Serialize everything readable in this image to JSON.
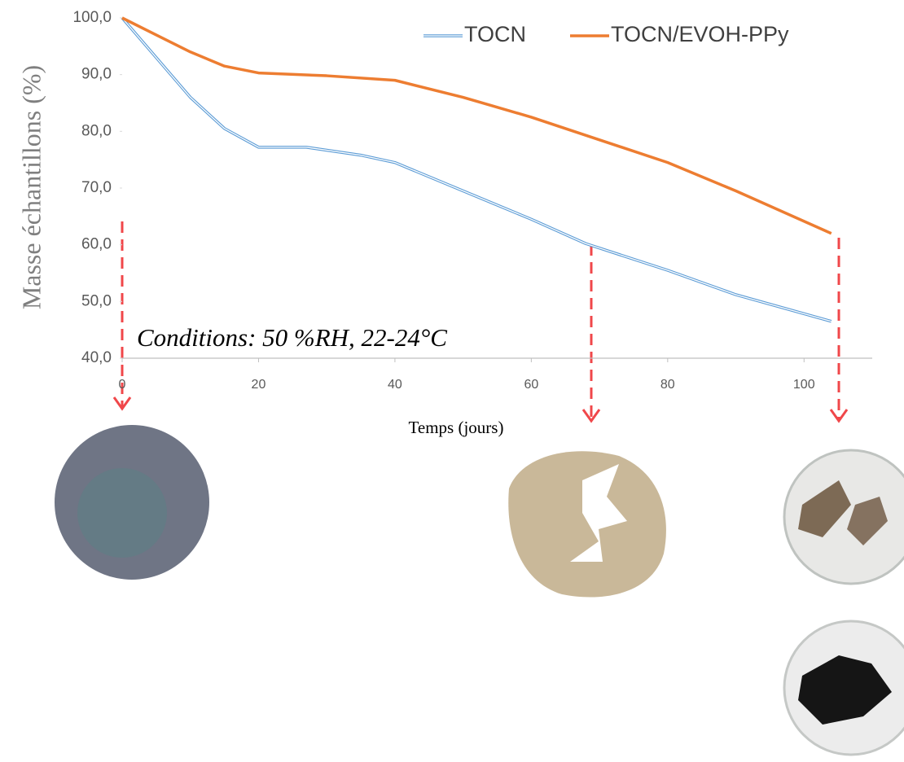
{
  "chart_data": {
    "type": "line",
    "x_label": "Temps (jours)",
    "y_label": "Masse échantillons (%)",
    "annotation": "Conditions: 50 %RH, 22-24°C",
    "xlim": [
      0,
      110
    ],
    "xticks": [
      0,
      20,
      40,
      60,
      80,
      100
    ],
    "ylim": [
      40,
      100
    ],
    "yticks": [
      {
        "value": 40,
        "label": "40,0"
      },
      {
        "value": 50,
        "label": "50,0"
      },
      {
        "value": 60,
        "label": "60,0"
      },
      {
        "value": 70,
        "label": "70,0"
      },
      {
        "value": 80,
        "label": "80,0"
      },
      {
        "value": 90,
        "label": "90,0"
      },
      {
        "value": 100,
        "label": "100,0"
      }
    ],
    "series": [
      {
        "name": "TOCN",
        "color": "#5b9bd5",
        "x": [
          0,
          5,
          10,
          15,
          20,
          27,
          35,
          40,
          50,
          60,
          68,
          80,
          90,
          104
        ],
        "values": [
          100,
          93,
          86,
          80.5,
          77.2,
          77.2,
          75.8,
          74.5,
          69.5,
          64.5,
          60.2,
          55.5,
          51.2,
          46.5
        ]
      },
      {
        "name": "TOCN/EVOH-PPy",
        "color": "#ed7d31",
        "x": [
          0,
          5,
          10,
          15,
          20,
          30,
          40,
          50,
          60,
          70,
          80,
          90,
          104
        ],
        "values": [
          100,
          97,
          94,
          91.5,
          90.3,
          89.8,
          89,
          86,
          82.5,
          78.5,
          74.5,
          69.5,
          62
        ]
      }
    ]
  }
}
